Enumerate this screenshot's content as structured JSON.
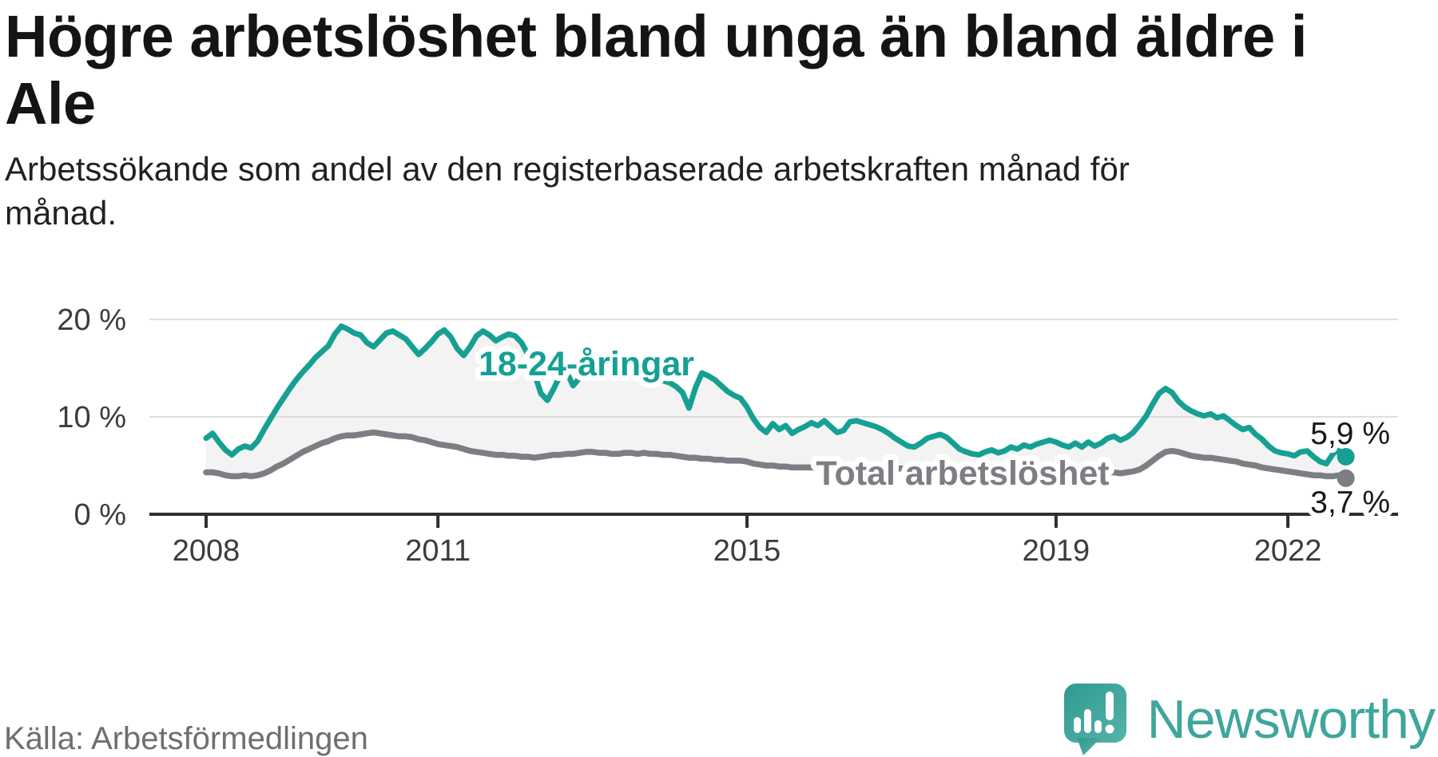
{
  "header": {
    "title_lines": [
      "Högre arbetslöshet bland unga än bland äldre i",
      "Ale"
    ],
    "subtitle_lines": [
      "Arbetssökande som andel av den registerbaserade arbetskraften månad för",
      "månad."
    ]
  },
  "footer": {
    "source": "Källa: Arbetsförmedlingen",
    "brand": "Newsworthy",
    "brand_color": "#3fa69c"
  },
  "chart_data": {
    "type": "line",
    "title": "Högre arbetslöshet bland unga än bland äldre i Ale",
    "subtitle": "Arbetssökande som andel av den registerbaserade arbetskraften månad för månad.",
    "unit": "%",
    "x_start": "2008-01",
    "x_end": "2022-10",
    "months_total": 178,
    "x_ticks": [
      {
        "label": "2008",
        "month_index": 0
      },
      {
        "label": "2011",
        "month_index": 36
      },
      {
        "label": "2015",
        "month_index": 84
      },
      {
        "label": "2019",
        "month_index": 132
      },
      {
        "label": "2022",
        "month_index": 168
      }
    ],
    "y_ticks": [
      {
        "label": "20 %",
        "value": 20
      },
      {
        "label": "10 %",
        "value": 10
      },
      {
        "label": "0 %",
        "value": 0
      }
    ],
    "ylim": [
      0,
      22
    ],
    "grid": "horizontal-only",
    "legend_position": "inline-labels",
    "colors": {
      "youth": "#16A094",
      "total": "#7D7D84",
      "area_fill": "#f3f3f3",
      "gridline": "#dedede",
      "axis": "#2f2f2f",
      "tick_label": "#3c3c3c",
      "value_label": "#191919"
    },
    "series": [
      {
        "name": "18-24-åringar",
        "color": "#16A094",
        "end_label": "5,9 %",
        "end_value": 5.9,
        "values": [
          7.8,
          8.3,
          7.4,
          6.6,
          6.1,
          6.7,
          7.0,
          6.8,
          7.5,
          8.7,
          9.8,
          10.9,
          11.9,
          12.9,
          13.8,
          14.6,
          15.3,
          16.1,
          16.7,
          17.3,
          18.5,
          19.3,
          19.0,
          18.6,
          18.4,
          17.6,
          17.2,
          17.9,
          18.6,
          18.8,
          18.4,
          18.0,
          17.2,
          16.4,
          17.0,
          17.7,
          18.5,
          18.9,
          18.2,
          17.0,
          16.3,
          17.2,
          18.3,
          18.8,
          18.4,
          17.8,
          18.2,
          18.5,
          18.3,
          17.6,
          16.4,
          14.4,
          12.4,
          11.7,
          12.9,
          14.3,
          14.6,
          13.2,
          14.0,
          15.0,
          15.1,
          14.6,
          15.0,
          14.4,
          14.9,
          14.3,
          14.8,
          14.2,
          14.7,
          14.1,
          13.9,
          13.7,
          13.5,
          13.1,
          12.5,
          10.9,
          13.0,
          14.5,
          14.2,
          13.8,
          13.2,
          12.6,
          12.2,
          11.9,
          11.0,
          9.8,
          8.9,
          8.4,
          9.3,
          8.7,
          9.1,
          8.3,
          8.7,
          9.0,
          9.4,
          9.1,
          9.6,
          9.0,
          8.4,
          8.6,
          9.5,
          9.6,
          9.4,
          9.2,
          9.0,
          8.7,
          8.3,
          7.8,
          7.4,
          7.0,
          6.9,
          7.3,
          7.8,
          8.0,
          8.2,
          7.9,
          7.3,
          6.7,
          6.4,
          6.2,
          6.1,
          6.4,
          6.6,
          6.3,
          6.5,
          6.9,
          6.7,
          7.1,
          6.9,
          7.2,
          7.4,
          7.6,
          7.4,
          7.1,
          6.9,
          7.3,
          6.9,
          7.4,
          7.0,
          7.3,
          7.8,
          8.0,
          7.6,
          7.9,
          8.4,
          9.2,
          10.1,
          11.3,
          12.4,
          12.9,
          12.5,
          11.6,
          11.0,
          10.6,
          10.3,
          10.1,
          10.3,
          9.9,
          10.1,
          9.6,
          9.1,
          8.7,
          8.9,
          8.2,
          7.7,
          7.0,
          6.5,
          6.3,
          6.2,
          6.0,
          6.4,
          6.5,
          5.9,
          5.4,
          5.2,
          6.2,
          6.7,
          5.9
        ]
      },
      {
        "name": "Total arbetslöshet",
        "color": "#7D7D84",
        "end_label": "3,7 %",
        "end_value": 3.7,
        "values": [
          4.3,
          4.3,
          4.2,
          4.0,
          3.9,
          3.9,
          4.0,
          3.9,
          4.0,
          4.2,
          4.5,
          4.9,
          5.2,
          5.6,
          6.0,
          6.4,
          6.7,
          7.0,
          7.3,
          7.5,
          7.8,
          8.0,
          8.1,
          8.1,
          8.2,
          8.3,
          8.4,
          8.3,
          8.2,
          8.1,
          8.0,
          8.0,
          7.9,
          7.7,
          7.6,
          7.4,
          7.2,
          7.1,
          7.0,
          6.9,
          6.7,
          6.5,
          6.4,
          6.3,
          6.2,
          6.1,
          6.1,
          6.0,
          6.0,
          5.9,
          5.9,
          5.8,
          5.9,
          6.0,
          6.1,
          6.1,
          6.2,
          6.2,
          6.3,
          6.4,
          6.4,
          6.3,
          6.3,
          6.2,
          6.2,
          6.3,
          6.3,
          6.2,
          6.3,
          6.2,
          6.2,
          6.1,
          6.1,
          6.0,
          5.9,
          5.8,
          5.8,
          5.7,
          5.7,
          5.6,
          5.6,
          5.5,
          5.5,
          5.5,
          5.4,
          5.2,
          5.1,
          5.0,
          5.0,
          4.9,
          4.9,
          4.8,
          4.8,
          4.8,
          4.8,
          4.8,
          4.8,
          4.8,
          4.7,
          4.7,
          4.8,
          4.8,
          4.8,
          4.9,
          4.9,
          4.8,
          4.7,
          4.7,
          4.7,
          4.6,
          4.6,
          4.7,
          4.8,
          4.9,
          5.0,
          5.0,
          4.9,
          4.8,
          4.8,
          4.8,
          4.8,
          4.9,
          4.9,
          4.8,
          4.7,
          4.6,
          4.6,
          4.5,
          4.4,
          4.4,
          4.5,
          4.5,
          4.4,
          4.3,
          4.3,
          4.2,
          4.2,
          4.3,
          4.3,
          4.2,
          4.3,
          4.3,
          4.2,
          4.3,
          4.4,
          4.6,
          5.0,
          5.5,
          6.0,
          6.4,
          6.5,
          6.4,
          6.2,
          6.0,
          5.9,
          5.8,
          5.8,
          5.7,
          5.6,
          5.5,
          5.4,
          5.2,
          5.1,
          5.0,
          4.8,
          4.7,
          4.6,
          4.5,
          4.4,
          4.3,
          4.2,
          4.1,
          4.0,
          4.0,
          3.9,
          3.9,
          4.0,
          3.7
        ]
      }
    ]
  }
}
